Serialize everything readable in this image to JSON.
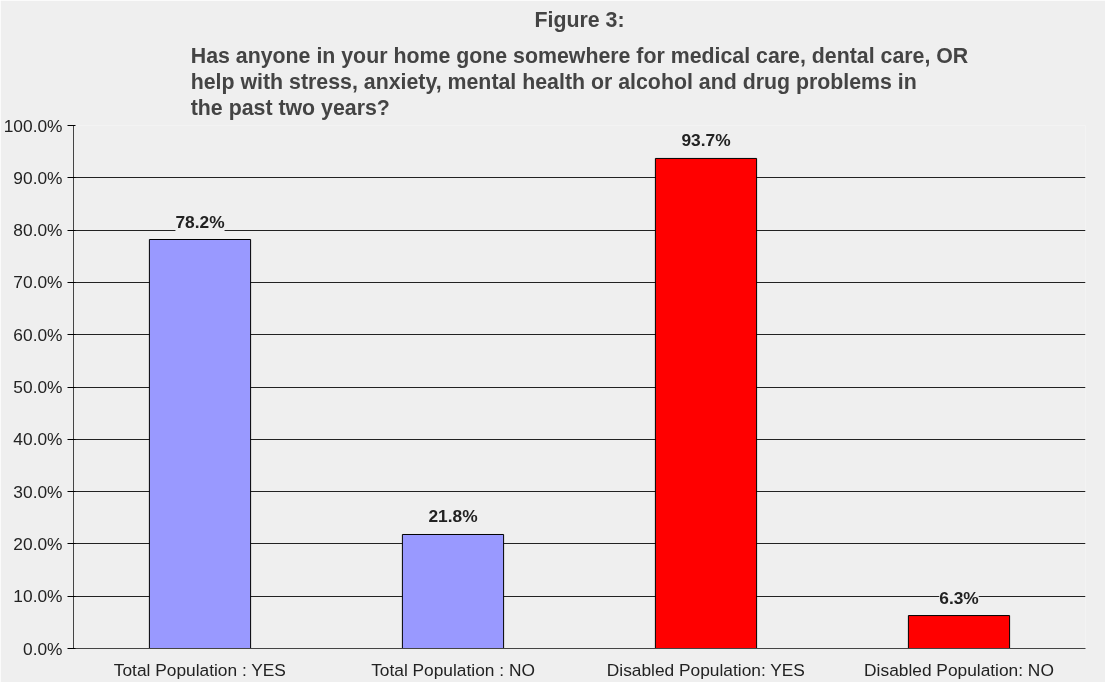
{
  "chart_data": {
    "type": "bar",
    "title": "Figure 3:",
    "subtitle": "Has anyone in your home gone somewhere for medical care, dental care, OR help with stress, anxiety, mental health or alcohol and drug problems in the past two years?",
    "categories": [
      "Total Population : YES",
      "Total Population : NO",
      "Disabled Population: YES",
      "Disabled Population: NO"
    ],
    "values": [
      78.2,
      21.8,
      93.7,
      6.3
    ],
    "colors": [
      "#9999ff",
      "#9999ff",
      "#ff0000",
      "#ff0000"
    ],
    "value_labels": [
      "78.2%",
      "21.8%",
      "93.7%",
      "6.3%"
    ],
    "ylim": [
      0,
      100
    ],
    "yticks": [
      {
        "value": 0,
        "label": "0.0%"
      },
      {
        "value": 10,
        "label": "10.0%"
      },
      {
        "value": 20,
        "label": "20.0%"
      },
      {
        "value": 30,
        "label": "30.0%"
      },
      {
        "value": 40,
        "label": "40.0%"
      },
      {
        "value": 50,
        "label": "50.0%"
      },
      {
        "value": 60,
        "label": "60.0%"
      },
      {
        "value": 70,
        "label": "70.0%"
      },
      {
        "value": 80,
        "label": "80.0%"
      },
      {
        "value": 90,
        "label": "90.0%"
      },
      {
        "value": 100,
        "label": "100.0%"
      }
    ],
    "grid": "y"
  }
}
